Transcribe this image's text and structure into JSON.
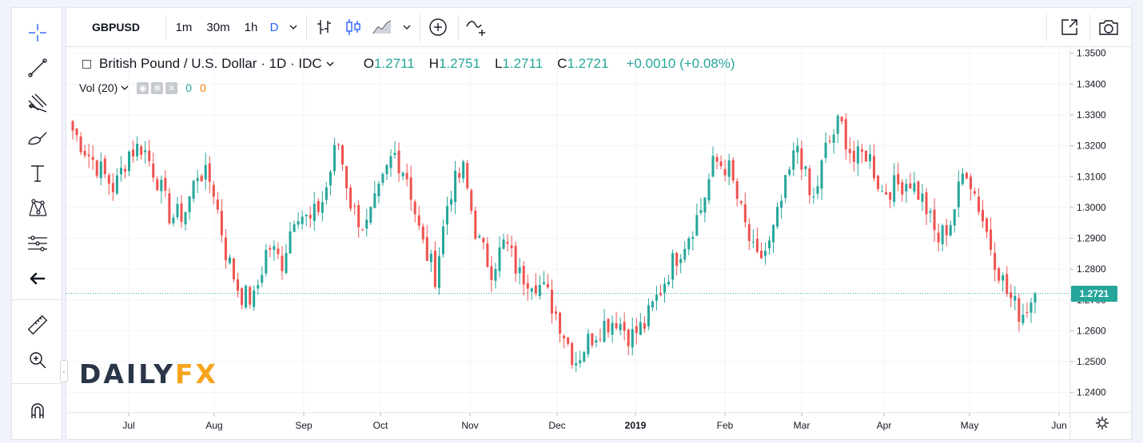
{
  "toolbar": {
    "symbol": "GBPUSD",
    "intervals": [
      {
        "label": "1m",
        "active": false
      },
      {
        "label": "30m",
        "active": false
      },
      {
        "label": "1h",
        "active": false
      },
      {
        "label": "D",
        "active": true
      }
    ],
    "icons": [
      "chevron-down-icon",
      "bar-style-icon",
      "candle-style-icon",
      "area-style-icon",
      "chevron-down-icon",
      "add-indicator-icon",
      "compare-icon",
      "fullscreen-icon",
      "camera-icon"
    ]
  },
  "left_tools": [
    "crosshair-icon",
    "trendline-icon",
    "pitchfork-icon",
    "brush-icon",
    "text-icon",
    "pattern-icon",
    "measure-layout-icon",
    "back-arrow-icon",
    "ruler-icon",
    "zoom-icon",
    "magnet-icon"
  ],
  "legend": {
    "title": "British Pound / U.S. Dollar · 1D · IDC",
    "open_label": "O",
    "open": "1.2711",
    "high_label": "H",
    "high": "1.2751",
    "low_label": "L",
    "low": "1.2711",
    "close_label": "C",
    "close": "1.2721",
    "change": "+0.0010 (+0.08%)"
  },
  "volume_legend": {
    "label": "Vol (20)",
    "value1": "0",
    "value2": "0"
  },
  "logo": {
    "part1": "DAILY",
    "part2": "FX"
  },
  "current_price": "1.2721",
  "colors": {
    "up": "#26a69a",
    "down": "#ef5350",
    "accent": "#2962ff",
    "logo_fx": "#f7a41d"
  },
  "chart_data": {
    "type": "candlestick",
    "symbol": "GBPUSD",
    "interval": "1D",
    "y_ticks": [
      "1.3500",
      "1.3400",
      "1.3300",
      "1.3200",
      "1.3100",
      "1.3000",
      "1.2900",
      "1.2800",
      "1.2700",
      "1.2600",
      "1.2500",
      "1.2400"
    ],
    "x_ticks": [
      "Jul",
      "Aug",
      "Sep",
      "Oct",
      "Nov",
      "Dec",
      "2019",
      "Feb",
      "Mar",
      "Apr",
      "May",
      "Jun"
    ],
    "ylim": [
      1.235,
      1.352
    ],
    "last_price": 1.2721,
    "approx_closes": [
      1.325,
      1.318,
      1.312,
      1.306,
      1.318,
      1.32,
      1.31,
      1.297,
      1.298,
      1.312,
      1.308,
      1.285,
      1.272,
      1.27,
      1.288,
      1.282,
      1.3,
      1.295,
      1.303,
      1.322,
      1.3,
      1.293,
      1.305,
      1.318,
      1.31,
      1.289,
      1.278,
      1.305,
      1.312,
      1.29,
      1.28,
      1.289,
      1.278,
      1.277,
      1.272,
      1.262,
      1.25,
      1.257,
      1.262,
      1.264,
      1.258,
      1.262,
      1.272,
      1.282,
      1.29,
      1.299,
      1.315,
      1.313,
      1.297,
      1.282,
      1.288,
      1.305,
      1.321,
      1.3,
      1.319,
      1.328,
      1.315,
      1.318,
      1.305,
      1.307,
      1.309,
      1.302,
      1.289,
      1.296,
      1.314,
      1.3,
      1.285,
      1.272,
      1.265,
      1.2721
    ]
  }
}
